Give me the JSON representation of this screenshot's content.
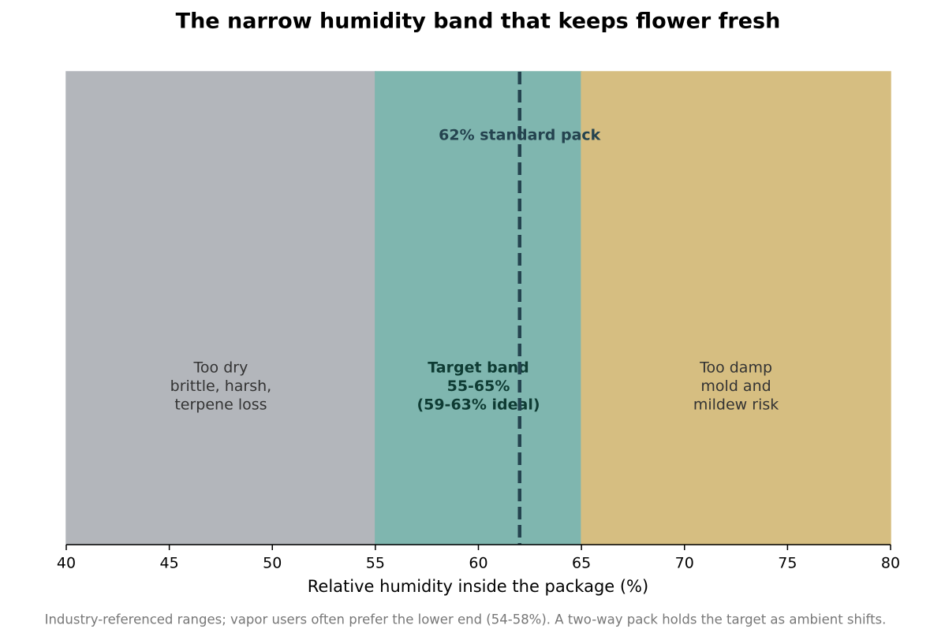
{
  "chart_data": {
    "type": "span",
    "title": "The narrow humidity band that keeps flower fresh",
    "xlabel": "Relative humidity inside the package (%)",
    "note": "Industry-referenced ranges; vapor users often prefer the lower end (54-58%). A two-way pack holds the target as ambient shifts.",
    "xlim": [
      40,
      80
    ],
    "xticks": [
      40,
      45,
      50,
      55,
      60,
      65,
      70,
      75,
      80
    ],
    "bands": [
      {
        "start": 40,
        "end": 55,
        "color": "#c7cad0",
        "label": [
          "Too dry",
          "brittle, harsh,",
          "terpene loss"
        ],
        "label_color": "#333333",
        "bold": false
      },
      {
        "start": 55,
        "end": 65,
        "color": "#8dcac2",
        "label": [
          "Target band",
          "55-65%",
          "(59-63% ideal)"
        ],
        "label_color": "#0e3b33",
        "bold": true
      },
      {
        "start": 65,
        "end": 80,
        "color": "#eed38f",
        "label": [
          "Too damp",
          "mold and",
          "mildew risk"
        ],
        "label_color": "#333333",
        "bold": false
      }
    ],
    "reference_line": {
      "value": 62,
      "label": "62% standard pack",
      "color": "#24434f"
    }
  }
}
